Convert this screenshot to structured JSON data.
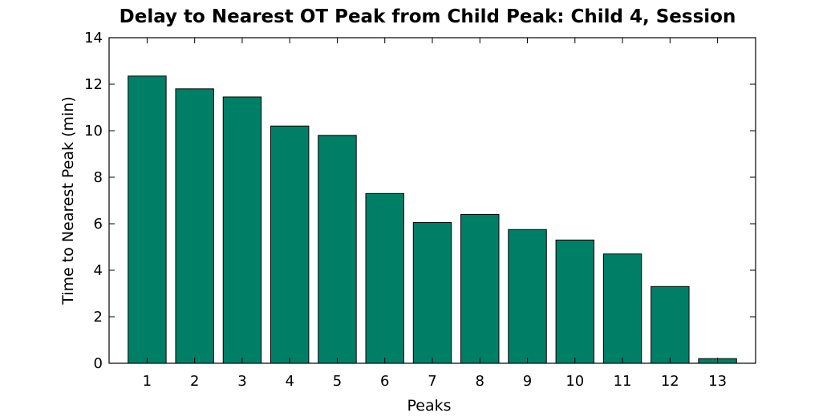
{
  "chart_data": {
    "type": "bar",
    "title": "Delay to Nearest OT Peak from Child Peak: Child 4, Session",
    "xlabel": "Peaks",
    "ylabel": "Time to Nearest Peak (min)",
    "categories": [
      "1",
      "2",
      "3",
      "4",
      "5",
      "6",
      "7",
      "8",
      "9",
      "10",
      "11",
      "12",
      "13"
    ],
    "values": [
      12.35,
      11.8,
      11.45,
      10.2,
      9.8,
      7.3,
      6.05,
      6.4,
      5.75,
      5.3,
      4.7,
      3.3,
      0.2
    ],
    "ylim": [
      0,
      14
    ],
    "yticks": [
      "0",
      "2",
      "4",
      "6",
      "8",
      "10",
      "12",
      "14"
    ],
    "bar_color": "#007f67",
    "grid": false,
    "legend": "none"
  }
}
